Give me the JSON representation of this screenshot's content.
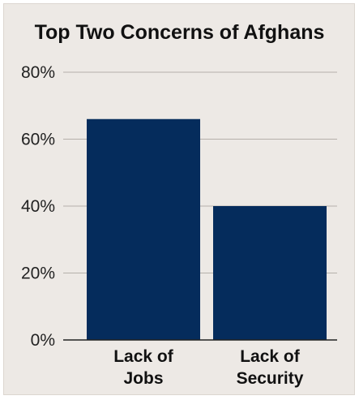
{
  "chart_data": {
    "type": "bar",
    "title": "Top Two Concerns of Afghans",
    "categories": [
      [
        "Lack of",
        "Jobs"
      ],
      [
        "Lack of",
        "Security"
      ]
    ],
    "values": [
      66,
      40
    ],
    "ylim": [
      0,
      80
    ],
    "yticks": [
      "0%",
      "20%",
      "40%",
      "60%",
      "80%"
    ],
    "ytick_values": [
      0,
      20,
      40,
      60,
      80
    ],
    "xlabel": "",
    "ylabel": "",
    "grid": true,
    "legend": "none"
  },
  "colors": {
    "background": "#ede9e5",
    "bar": "#052c5c",
    "grid": "#b5b0aa",
    "axis": "#222222"
  }
}
